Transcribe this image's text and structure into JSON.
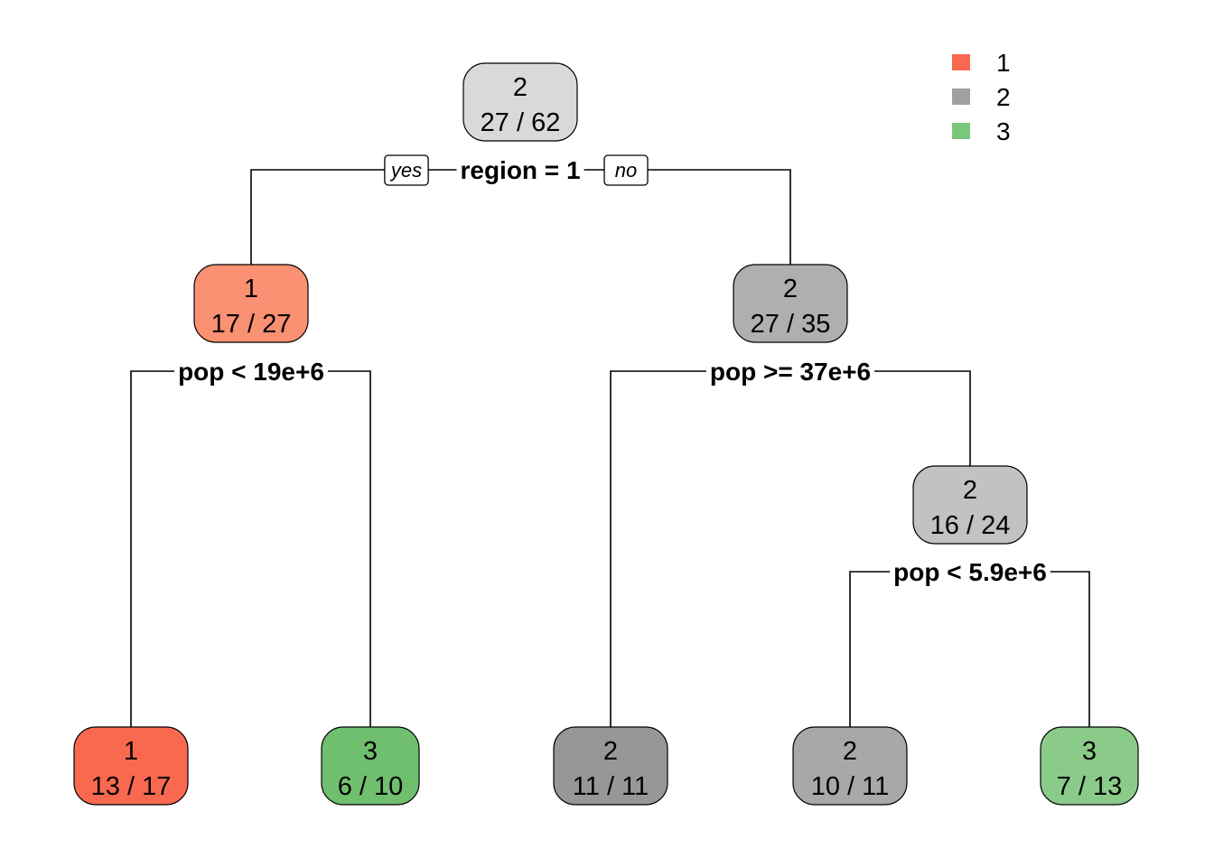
{
  "legend": [
    {
      "label": "1",
      "color": "#F8694F"
    },
    {
      "label": "2",
      "color": "#A0A0A0"
    },
    {
      "label": "3",
      "color": "#7AC77C"
    }
  ],
  "branch_labels": {
    "yes": "yes",
    "no": "no"
  },
  "nodes": [
    {
      "id": "root",
      "class": "2",
      "stats": "27 / 62",
      "fill": "#D9D9D9"
    },
    {
      "id": "n-left",
      "class": "1",
      "stats": "17 / 27",
      "fill": "#FA9173"
    },
    {
      "id": "n-right",
      "class": "2",
      "stats": "27 / 35",
      "fill": "#AFAFAF"
    },
    {
      "id": "n-right-right",
      "class": "2",
      "stats": "16 / 24",
      "fill": "#C2C2C2"
    },
    {
      "id": "leaf-1",
      "class": "1",
      "stats": "13 / 17",
      "fill": "#F8694F"
    },
    {
      "id": "leaf-2",
      "class": "3",
      "stats": "6 / 10",
      "fill": "#6FBF6F"
    },
    {
      "id": "leaf-3",
      "class": "2",
      "stats": "11 / 11",
      "fill": "#979797"
    },
    {
      "id": "leaf-4",
      "class": "2",
      "stats": "10 / 11",
      "fill": "#A8A8A8"
    },
    {
      "id": "leaf-5",
      "class": "3",
      "stats": "7 / 13",
      "fill": "#8BCB8A"
    }
  ],
  "splits": [
    {
      "id": "split-root",
      "label": "region = 1"
    },
    {
      "id": "split-left",
      "label": "pop < 19e+6"
    },
    {
      "id": "split-right",
      "label": "pop >= 37e+6"
    },
    {
      "id": "split-right-right",
      "label": "pop < 5.9e+6"
    }
  ]
}
